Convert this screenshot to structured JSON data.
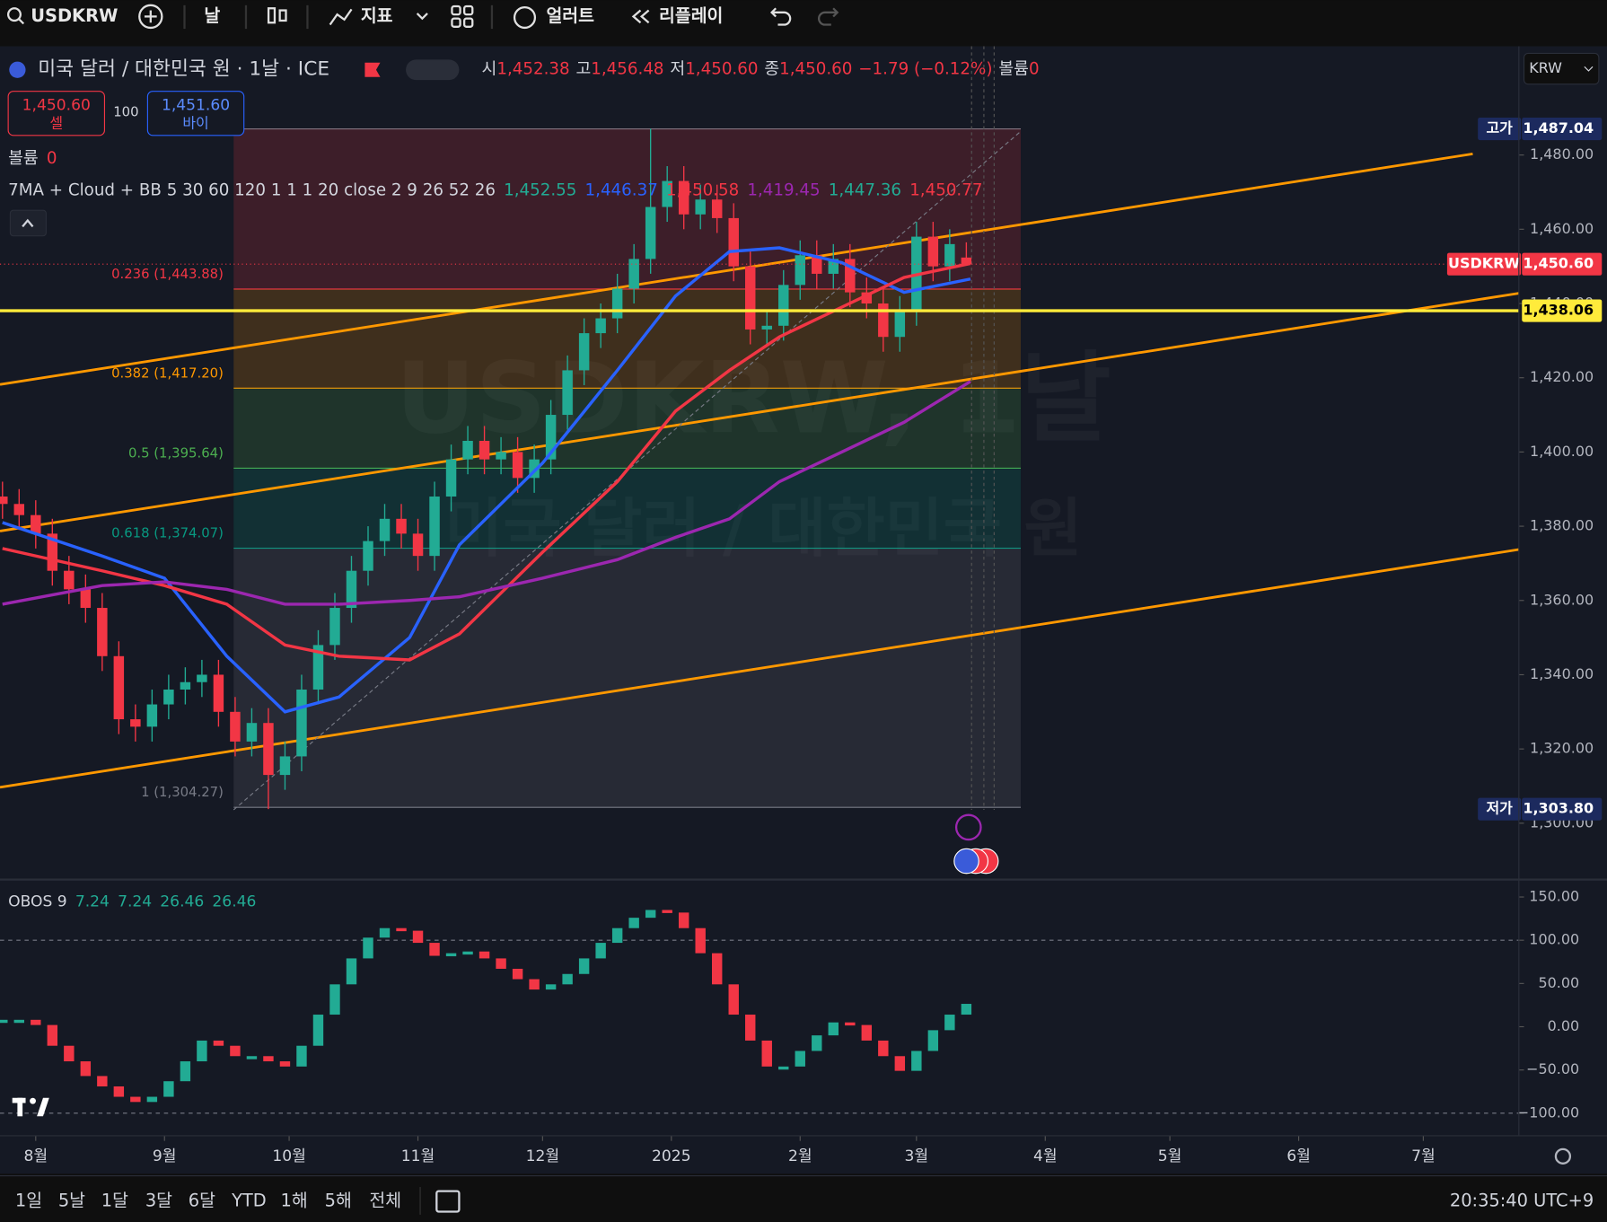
{
  "toolbar": {
    "symbol": "USDKRW",
    "interval": "날",
    "indicators": "지표",
    "alerts": "얼러트",
    "replay": "리플레이"
  },
  "legend": {
    "title": "미국 달러 / 대한민국 원 · 1날 · ICE",
    "open_label": "시",
    "open": "1,452.38",
    "high_label": "고",
    "high": "1,456.48",
    "low_label": "저",
    "low": "1,450.60",
    "close_label": "종",
    "close": "1,450.60",
    "change": "−1.79 (−0.12%)",
    "volume_label": "볼륨",
    "volume": "0"
  },
  "trade": {
    "sell_price": "1,450.60",
    "sell_label": "셀",
    "quantity": "100",
    "buy_price": "1,451.60",
    "buy_label": "바이"
  },
  "volume_legend": {
    "label": "볼륨",
    "value": "0"
  },
  "ma_legend": {
    "name": "7MA + Cloud + BB 5 30 60 120 1 1 1 20 close 2 9 26 52 26",
    "values": [
      "1,452.55",
      "1,446.37",
      "1,450.58",
      "1,419.45",
      "1,447.36",
      "1,450.77"
    ],
    "colors": [
      "#22ab94",
      "#2962ff",
      "#f23645",
      "#9c27b0",
      "#22ab94",
      "#f23645"
    ]
  },
  "currency": "KRW",
  "watermark": {
    "symbol": "USDKRW, 1날",
    "description": "미국 달러 / 대한민국 원"
  },
  "chart_data": [
    {
      "type": "candlestick",
      "up_color": "#22ab94",
      "down_color": "#f23645",
      "x": [
        -8,
        -4,
        0,
        4,
        8,
        12,
        16,
        20,
        24,
        28,
        32,
        36,
        40,
        44,
        48,
        52,
        56,
        60,
        64,
        68,
        72,
        76,
        80,
        84,
        88,
        92,
        96,
        100,
        104,
        108,
        112,
        116,
        120,
        124,
        128,
        132,
        136,
        140,
        144,
        148,
        152,
        156,
        160,
        164,
        168,
        172,
        176,
        180,
        184,
        188,
        192,
        196,
        200,
        204,
        208,
        212,
        216,
        220,
        224
      ],
      "open": [
        1388,
        1386,
        1383,
        1378,
        1368,
        1363,
        1358,
        1345,
        1328,
        1326,
        1332,
        1336,
        1338,
        1340,
        1330,
        1322,
        1327,
        1313,
        1318,
        1336,
        1348,
        1358,
        1368,
        1376,
        1382,
        1378,
        1372,
        1388,
        1398,
        1403,
        1398,
        1400,
        1393,
        1398,
        1410,
        1422,
        1432,
        1436,
        1444,
        1452,
        1466,
        1473,
        1464,
        1468,
        1463,
        1450,
        1433,
        1434,
        1445,
        1453,
        1448,
        1452,
        1443,
        1440,
        1431,
        1438,
        1458,
        1450,
        1452.38
      ],
      "high": [
        1392,
        1390,
        1387,
        1382,
        1372,
        1367,
        1362,
        1349,
        1332,
        1336,
        1340,
        1342,
        1344,
        1344,
        1334,
        1331,
        1331,
        1322,
        1340,
        1352,
        1362,
        1372,
        1380,
        1386,
        1386,
        1382,
        1392,
        1402,
        1407,
        1407,
        1404,
        1404,
        1402,
        1414,
        1426,
        1436,
        1440,
        1448,
        1456,
        1487.04,
        1477,
        1477,
        1472,
        1472,
        1467,
        1454,
        1438,
        1449,
        1457,
        1457,
        1456,
        1456,
        1447,
        1444,
        1442,
        1462,
        1462,
        1460,
        1456.48
      ],
      "low": [
        1382,
        1379,
        1374,
        1364,
        1359,
        1354,
        1341,
        1324,
        1322,
        1322,
        1328,
        1332,
        1334,
        1326,
        1318,
        1318,
        1303.8,
        1309,
        1314,
        1332,
        1344,
        1354,
        1364,
        1372,
        1374,
        1368,
        1368,
        1384,
        1394,
        1394,
        1394,
        1389,
        1389,
        1394,
        1406,
        1418,
        1428,
        1432,
        1440,
        1448,
        1462,
        1460,
        1460,
        1459,
        1446,
        1429,
        1429,
        1430,
        1441,
        1444,
        1444,
        1439,
        1436,
        1427,
        1427,
        1434,
        1446,
        1446,
        1450.6
      ],
      "close": [
        1386,
        1383,
        1378,
        1368,
        1363,
        1358,
        1345,
        1328,
        1326,
        1332,
        1336,
        1338,
        1340,
        1330,
        1322,
        1327,
        1313,
        1318,
        1336,
        1348,
        1358,
        1368,
        1376,
        1382,
        1378,
        1372,
        1388,
        1398,
        1403,
        1398,
        1400,
        1393,
        1398,
        1410,
        1422,
        1432,
        1436,
        1444,
        1452,
        1466,
        1473,
        1464,
        1468,
        1463,
        1450,
        1433,
        1434,
        1445,
        1453,
        1448,
        1452,
        1443,
        1440,
        1431,
        1438,
        1458,
        1450,
        1456,
        1450.6
      ],
      "moving_averages": [
        {
          "color": "#2962ff",
          "x": [
            -8,
            16,
            31,
            46,
            60,
            73,
            90,
            102,
            122,
            140,
            154,
            167,
            179,
            194,
            209,
            225
          ],
          "values": [
            1381,
            1372,
            1366,
            1345,
            1330,
            1334,
            1350,
            1375,
            1397,
            1422,
            1442,
            1454,
            1455,
            1451,
            1443,
            1446.6
          ]
        },
        {
          "color": "#f23645",
          "x": [
            -8,
            16,
            31,
            46,
            60,
            73,
            90,
            102,
            122,
            140,
            154,
            167,
            179,
            194,
            209,
            225
          ],
          "values": [
            1374,
            1368,
            1364,
            1359,
            1348,
            1345,
            1344,
            1351,
            1373,
            1392,
            1411,
            1422,
            1431,
            1439,
            1447,
            1450.8
          ]
        },
        {
          "color": "#9c27b0",
          "x": [
            -8,
            16,
            31,
            46,
            60,
            73,
            90,
            102,
            122,
            140,
            154,
            167,
            179,
            194,
            209,
            225
          ],
          "values": [
            1359,
            1364,
            1365,
            1363,
            1359,
            1359,
            1360,
            1361,
            1366,
            1371,
            1377,
            1382,
            1392,
            1400,
            1408,
            1419
          ]
        }
      ],
      "fibonacci": {
        "high": 1487.04,
        "levels": [
          {
            "value": 1443.88,
            "label": "0.236 (1,443.88)",
            "color": "#f23645"
          },
          {
            "value": 1417.2,
            "label": "0.382 (1,417.20)",
            "color": "#ff9800"
          },
          {
            "value": 1395.64,
            "label": "0.5 (1,395.64)",
            "color": "#4caf50"
          },
          {
            "value": 1374.07,
            "label": "0.618 (1,374.07)",
            "color": "#089981"
          },
          {
            "value": 1304.27,
            "label": "1 (1,304.27)",
            "color": "#787b86"
          }
        ]
      },
      "price_labels": [
        {
          "name": "고가",
          "value": 1487.04,
          "label": "1,487.04",
          "color": "#1c2a5e"
        },
        {
          "name": "USDKRW",
          "value": 1450.6,
          "label": "1,450.60",
          "color": "#f23645"
        },
        {
          "value": 1438.06,
          "label": "1,438.06",
          "color": "#ffeb3b"
        },
        {
          "name": "저가",
          "value": 1303.8,
          "label": "1,303.80",
          "color": "#1c2a5e"
        }
      ],
      "xlim": [
        -8.6,
        357
      ],
      "xticks": [
        {
          "value": 0,
          "label": "8월"
        },
        {
          "value": 31,
          "label": "9월"
        },
        {
          "value": 61,
          "label": "10월"
        },
        {
          "value": 92,
          "label": "11월"
        },
        {
          "value": 122,
          "label": "12월"
        },
        {
          "value": 153,
          "label": "2025"
        },
        {
          "value": 184,
          "label": "2월"
        },
        {
          "value": 212,
          "label": "3월"
        },
        {
          "value": 243,
          "label": "4월"
        },
        {
          "value": 273,
          "label": "5월"
        },
        {
          "value": 304,
          "label": "6월"
        },
        {
          "value": 334,
          "label": "7월"
        }
      ],
      "ylim": [
        1285.1,
        1509.3
      ],
      "yticks": [
        {
          "value": 1300,
          "label": "1,300.00"
        },
        {
          "value": 1320,
          "label": "1,320.00"
        },
        {
          "value": 1340,
          "label": "1,340.00"
        },
        {
          "value": 1360,
          "label": "1,360.00"
        },
        {
          "value": 1380,
          "label": "1,380.00"
        },
        {
          "value": 1400,
          "label": "1,400.00"
        },
        {
          "value": 1420,
          "label": "1,420.00"
        },
        {
          "value": 1440,
          "label": "1,440.00"
        },
        {
          "value": 1460,
          "label": "1,460.00"
        },
        {
          "value": 1480,
          "label": "1,480.00"
        }
      ]
    },
    {
      "type": "obos",
      "title": "OBOS 9",
      "legend_values": [
        "7.24",
        "7.24",
        "26.46",
        "26.46"
      ],
      "up_color": "#22ab94",
      "down_color": "#f23645",
      "x": [
        -8,
        -4,
        0,
        4,
        8,
        12,
        16,
        20,
        24,
        28,
        32,
        36,
        40,
        44,
        48,
        52,
        56,
        60,
        64,
        68,
        72,
        76,
        80,
        84,
        88,
        92,
        96,
        100,
        104,
        108,
        112,
        116,
        120,
        124,
        128,
        132,
        136,
        140,
        144,
        148,
        152,
        156,
        160,
        164,
        168,
        172,
        176,
        180,
        184,
        188,
        192,
        196,
        200,
        204,
        208,
        212,
        216,
        220,
        224
      ],
      "values": [
        8,
        8,
        2,
        -22,
        -40,
        -57,
        -69,
        -81,
        -87,
        -81,
        -63,
        -40,
        -16,
        -22,
        -34,
        -34,
        -40,
        -46,
        -22,
        14,
        49,
        79,
        103,
        114,
        111,
        97,
        82,
        85,
        87,
        79,
        67,
        55,
        43,
        49,
        61,
        79,
        97,
        114,
        126,
        135,
        132,
        114,
        85,
        49,
        14,
        -16,
        -46,
        -46,
        -28,
        -10,
        5,
        2,
        -16,
        -34,
        -51,
        -28,
        -4,
        14,
        26.46
      ],
      "levels": [
        100,
        -100
      ],
      "xlim": [
        -8.6,
        357
      ],
      "ylim": [
        -126.1,
        167.8
      ],
      "yticks": [
        {
          "value": 150,
          "label": "150.00"
        },
        {
          "value": 100,
          "label": "100.00"
        },
        {
          "value": 50,
          "label": "50.00"
        },
        {
          "value": 0,
          "label": "0.00"
        },
        {
          "value": -50,
          "label": "−50.00"
        },
        {
          "value": -100,
          "label": "−100.00"
        }
      ]
    }
  ],
  "ranges": [
    "1일",
    "5날",
    "1달",
    "3달",
    "6달",
    "YTD",
    "1해",
    "5해",
    "전체"
  ],
  "clock": "20:35:40 UTC+9"
}
